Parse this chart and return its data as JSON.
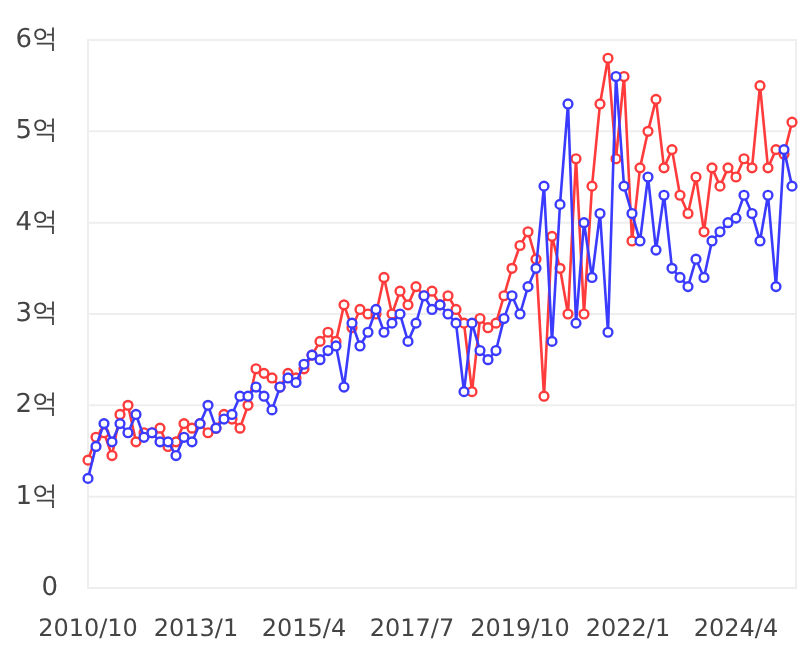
{
  "chart_data": {
    "type": "line",
    "x": [
      "2010-10",
      "2010-12",
      "2011-02",
      "2011-04",
      "2011-06",
      "2011-08",
      "2011-10",
      "2011-12",
      "2012-02",
      "2012-04",
      "2012-06",
      "2012-08",
      "2012-10",
      "2012-12",
      "2013-02",
      "2013-04",
      "2013-06",
      "2013-08",
      "2013-10",
      "2013-12",
      "2014-02",
      "2014-04",
      "2014-06",
      "2014-08",
      "2014-10",
      "2014-12",
      "2015-02",
      "2015-04",
      "2015-06",
      "2015-08",
      "2015-10",
      "2015-12",
      "2016-02",
      "2016-04",
      "2016-06",
      "2016-08",
      "2016-10",
      "2016-12",
      "2017-02",
      "2017-04",
      "2017-06",
      "2017-08",
      "2017-10",
      "2017-12",
      "2018-02",
      "2018-04",
      "2018-06",
      "2018-08",
      "2018-10",
      "2018-12",
      "2019-02",
      "2019-04",
      "2019-06",
      "2019-08",
      "2019-10",
      "2019-12",
      "2020-02",
      "2020-04",
      "2020-06",
      "2020-08",
      "2020-10",
      "2020-12",
      "2021-02",
      "2021-04",
      "2021-06",
      "2021-08",
      "2021-10",
      "2021-12",
      "2022-02",
      "2022-04",
      "2022-06",
      "2022-08",
      "2022-10",
      "2022-12",
      "2023-02",
      "2023-04",
      "2023-06",
      "2023-08",
      "2023-10",
      "2023-12",
      "2024-02",
      "2024-04",
      "2024-06",
      "2024-08",
      "2024-10",
      "2024-12",
      "2025-02",
      "2025-04",
      "2025-06"
    ],
    "series": [
      {
        "color": "#ff3b3b",
        "values": [
          1.4,
          1.65,
          1.7,
          1.45,
          1.9,
          2.0,
          1.6,
          1.7,
          1.7,
          1.75,
          1.55,
          1.6,
          1.8,
          1.75,
          1.8,
          1.7,
          1.75,
          1.9,
          1.85,
          1.75,
          2.0,
          2.4,
          2.35,
          2.3,
          2.2,
          2.35,
          2.3,
          2.4,
          2.55,
          2.7,
          2.8,
          2.7,
          3.1,
          2.85,
          3.05,
          3.0,
          3.0,
          3.4,
          3.0,
          3.25,
          3.1,
          3.3,
          3.2,
          3.25,
          3.1,
          3.2,
          3.05,
          2.9,
          2.15,
          2.95,
          2.85,
          2.9,
          3.2,
          3.5,
          3.75,
          3.9,
          3.6,
          2.1,
          3.85,
          3.5,
          3.0,
          4.7,
          3.0,
          4.4,
          5.3,
          5.8,
          4.7,
          5.6,
          3.8,
          4.6,
          5.0,
          5.35,
          4.6,
          4.8,
          4.3,
          4.1,
          4.5,
          3.9,
          4.6,
          4.4,
          4.6,
          4.5,
          4.7,
          4.6,
          5.5,
          4.6,
          4.8,
          4.75,
          5.1
        ]
      },
      {
        "color": "#3b3bff",
        "values": [
          1.2,
          1.55,
          1.8,
          1.6,
          1.8,
          1.7,
          1.9,
          1.65,
          1.7,
          1.6,
          1.6,
          1.45,
          1.65,
          1.6,
          1.8,
          2.0,
          1.75,
          1.85,
          1.9,
          2.1,
          2.1,
          2.2,
          2.1,
          1.95,
          2.2,
          2.3,
          2.25,
          2.45,
          2.55,
          2.5,
          2.6,
          2.65,
          2.2,
          2.9,
          2.65,
          2.8,
          3.05,
          2.8,
          2.9,
          3.0,
          2.7,
          2.9,
          3.2,
          3.05,
          3.1,
          3.0,
          2.9,
          2.15,
          2.9,
          2.6,
          2.5,
          2.6,
          2.95,
          3.2,
          3.0,
          3.3,
          3.5,
          4.4,
          2.7,
          4.2,
          5.3,
          2.9,
          4.0,
          3.4,
          4.1,
          2.8,
          5.6,
          4.4,
          4.1,
          3.8,
          4.5,
          3.7,
          4.3,
          3.5,
          3.4,
          3.3,
          3.6,
          3.4,
          3.8,
          3.9,
          4.0,
          4.05,
          4.3,
          4.1,
          3.8,
          4.3,
          3.3,
          4.8,
          4.4
        ]
      }
    ],
    "xlim": [
      "2010-10",
      "2025-07"
    ],
    "xticks": [
      {
        "value": "2010-10",
        "label": "2010/10"
      },
      {
        "value": "2013-01",
        "label": "2013/1"
      },
      {
        "value": "2015-04",
        "label": "2015/4"
      },
      {
        "value": "2017-07",
        "label": "2017/7"
      },
      {
        "value": "2019-10",
        "label": "2019/10"
      },
      {
        "value": "2022-01",
        "label": "2022/1"
      },
      {
        "value": "2024-04",
        "label": "2024/4"
      }
    ],
    "ylim": [
      0,
      6
    ],
    "yticks": [
      0,
      {
        "value": 1,
        "label": "1억"
      },
      {
        "value": 2,
        "label": "2억"
      },
      {
        "value": 3,
        "label": "3억"
      },
      {
        "value": 4,
        "label": "4억"
      },
      {
        "value": 5,
        "label": "5억"
      },
      {
        "value": 6,
        "label": "6억"
      }
    ],
    "grid": "y",
    "marker": "circle",
    "line_style": "solid"
  }
}
